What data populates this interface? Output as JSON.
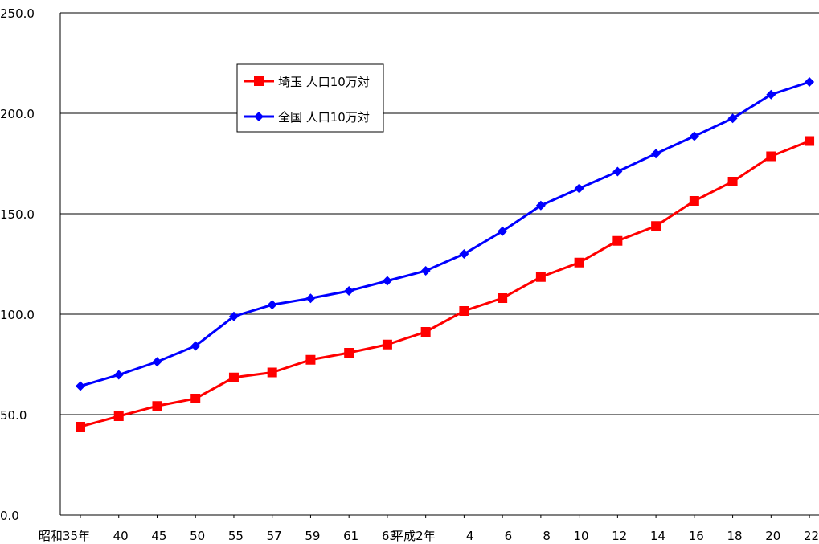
{
  "chart_data": {
    "type": "line",
    "categories": [
      "昭和35年",
      "40",
      "45",
      "50",
      "55",
      "57",
      "59",
      "61",
      "63",
      "平成2年",
      "4",
      "6",
      "8",
      "10",
      "12",
      "14",
      "16",
      "18",
      "20",
      "22"
    ],
    "series": [
      {
        "name": "埼玉 人口10万対",
        "color": "#ff0000",
        "marker": "square",
        "values": [
          44.0,
          49.2,
          54.3,
          58.0,
          68.5,
          71.0,
          77.3,
          80.8,
          84.9,
          91.2,
          101.6,
          108.0,
          118.5,
          125.7,
          136.5,
          143.9,
          156.4,
          166.0,
          178.6,
          186.2
        ]
      },
      {
        "name": "全国 人口10万対",
        "color": "#0000ff",
        "marker": "diamond",
        "values": [
          64.2,
          69.8,
          76.3,
          84.2,
          98.9,
          104.7,
          107.9,
          111.6,
          116.6,
          121.6,
          130.0,
          141.3,
          154.1,
          162.6,
          171.0,
          179.9,
          188.6,
          197.5,
          209.3,
          215.6
        ]
      }
    ],
    "ylim": [
      0,
      250
    ],
    "yticks": [
      "0.0",
      "50.0",
      "100.0",
      "150.0",
      "200.0",
      "250.0"
    ],
    "grid": true,
    "legend_position": "upper-left-inside",
    "title": "",
    "xlabel": "",
    "ylabel": ""
  }
}
